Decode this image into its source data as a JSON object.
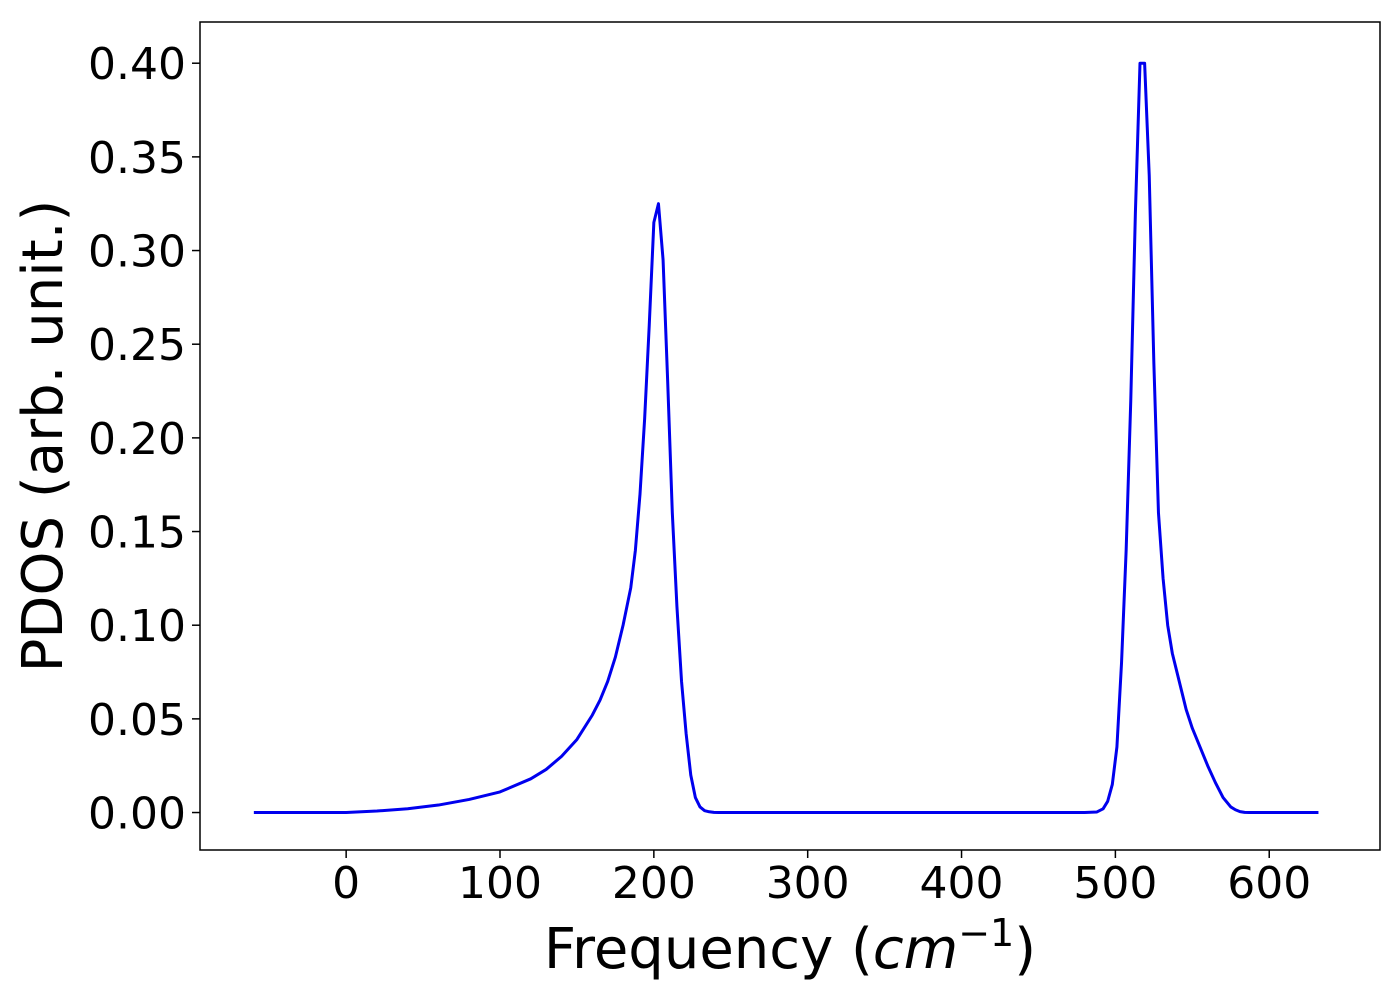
{
  "chart_data": {
    "type": "line",
    "title": "",
    "xlabel_prefix": "Frequency (",
    "xlabel_math_base": "cm",
    "xlabel_math_exp": "−1",
    "xlabel_suffix": ")",
    "ylabel": "PDOS (arb. unit.)",
    "xlim": [
      -95,
      672
    ],
    "ylim": [
      -0.02,
      0.422
    ],
    "xticks": [
      0,
      100,
      200,
      300,
      400,
      500,
      600
    ],
    "xtick_labels": [
      "0",
      "100",
      "200",
      "300",
      "400",
      "500",
      "600"
    ],
    "yticks": [
      0.0,
      0.05,
      0.1,
      0.15,
      0.2,
      0.25,
      0.3,
      0.35,
      0.4
    ],
    "ytick_labels": [
      "0.00",
      "0.05",
      "0.10",
      "0.15",
      "0.20",
      "0.25",
      "0.30",
      "0.35",
      "0.40"
    ],
    "grid": false,
    "legend": "none",
    "series": [
      {
        "color": "#0000ee",
        "x": [
          -60,
          -40,
          -20,
          0,
          20,
          40,
          60,
          80,
          100,
          120,
          130,
          140,
          150,
          160,
          165,
          170,
          175,
          180,
          185,
          188,
          191,
          194,
          197,
          200,
          203,
          206,
          209,
          212,
          215,
          218,
          221,
          224,
          227,
          230,
          233,
          236,
          239,
          242,
          245,
          250,
          260,
          300,
          350,
          400,
          450,
          480,
          488,
          492,
          495,
          498,
          501,
          504,
          507,
          510,
          513,
          516,
          519,
          522,
          525,
          528,
          531,
          534,
          537,
          540,
          543,
          546,
          550,
          555,
          560,
          565,
          570,
          575,
          578,
          581,
          584,
          587,
          590,
          600,
          632
        ],
        "y": [
          0.0,
          0.0,
          0.0,
          0.0,
          0.0008,
          0.002,
          0.004,
          0.007,
          0.011,
          0.018,
          0.023,
          0.03,
          0.039,
          0.052,
          0.06,
          0.07,
          0.083,
          0.1,
          0.12,
          0.14,
          0.17,
          0.21,
          0.26,
          0.315,
          0.325,
          0.295,
          0.23,
          0.16,
          0.11,
          0.07,
          0.042,
          0.02,
          0.008,
          0.003,
          0.001,
          0.0004,
          0.0001,
          0.0,
          0.0,
          0.0,
          0.0,
          0.0,
          0.0,
          0.0,
          0.0,
          0.0,
          0.0003,
          0.002,
          0.006,
          0.015,
          0.035,
          0.08,
          0.14,
          0.22,
          0.32,
          0.4,
          0.4,
          0.34,
          0.24,
          0.16,
          0.125,
          0.1,
          0.085,
          0.075,
          0.065,
          0.055,
          0.045,
          0.035,
          0.025,
          0.016,
          0.008,
          0.003,
          0.0015,
          0.0005,
          0.0001,
          0.0,
          0.0,
          0.0,
          0.0
        ]
      }
    ]
  }
}
